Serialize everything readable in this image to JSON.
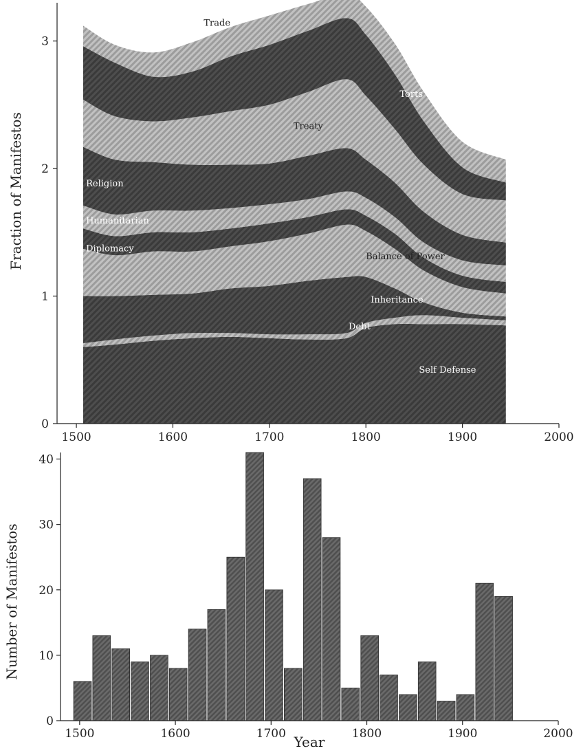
{
  "chart_data": [
    {
      "type": "area",
      "stacked": true,
      "title": "",
      "xlabel": "",
      "ylabel": "Fraction of Manifestos",
      "xlim": [
        1480,
        2000
      ],
      "ylim": [
        0,
        3.3
      ],
      "xticks": [
        "1500",
        "1600",
        "1700",
        "1800",
        "1900",
        "2000"
      ],
      "yticks": [
        "0",
        "1",
        "2",
        "3"
      ],
      "grid": false,
      "legend": "none (layers labelled inline)",
      "x": [
        1507,
        1540,
        1580,
        1620,
        1660,
        1700,
        1740,
        1780,
        1800,
        1830,
        1860,
        1900,
        1945
      ],
      "series": [
        {
          "name": "Self Defense",
          "label_pos": [
            1855,
            0.4
          ],
          "label_color": "#ffffff",
          "values": [
            0.6,
            0.62,
            0.65,
            0.67,
            0.68,
            0.67,
            0.66,
            0.67,
            0.75,
            0.78,
            0.78,
            0.78,
            0.77
          ]
        },
        {
          "name": "Debt",
          "label_pos": [
            1782,
            0.74
          ],
          "label_color": "#ffffff",
          "values": [
            0.03,
            0.04,
            0.04,
            0.04,
            0.03,
            0.03,
            0.04,
            0.04,
            0.04,
            0.05,
            0.07,
            0.05,
            0.04
          ]
        },
        {
          "name": "Inheritance",
          "label_pos": [
            1805,
            0.95
          ],
          "label_color": "#ffffff",
          "values": [
            0.37,
            0.34,
            0.32,
            0.31,
            0.35,
            0.38,
            0.42,
            0.44,
            0.36,
            0.23,
            0.1,
            0.04,
            0.03
          ]
        },
        {
          "name": "Balance of Power",
          "label_pos": [
            1800,
            1.29
          ],
          "label_color": "#222222",
          "values": [
            0.37,
            0.32,
            0.34,
            0.33,
            0.33,
            0.35,
            0.37,
            0.41,
            0.36,
            0.31,
            0.25,
            0.2,
            0.18
          ]
        },
        {
          "name": "Diplomacy",
          "label_pos": [
            1510,
            1.35
          ],
          "label_color": "#ffffff",
          "values": [
            0.16,
            0.15,
            0.15,
            0.15,
            0.14,
            0.14,
            0.13,
            0.12,
            0.12,
            0.12,
            0.1,
            0.09,
            0.09
          ]
        },
        {
          "name": "Humanitarian",
          "label_pos": [
            1510,
            1.57
          ],
          "label_color": "#ffffff",
          "values": [
            0.18,
            0.17,
            0.17,
            0.17,
            0.16,
            0.15,
            0.14,
            0.14,
            0.14,
            0.13,
            0.12,
            0.12,
            0.13
          ]
        },
        {
          "name": "Religion",
          "label_pos": [
            1510,
            1.86
          ],
          "label_color": "#ffffff",
          "values": [
            0.46,
            0.43,
            0.38,
            0.36,
            0.34,
            0.32,
            0.34,
            0.34,
            0.3,
            0.27,
            0.24,
            0.2,
            0.18
          ]
        },
        {
          "name": "Treaty",
          "label_pos": [
            1725,
            2.31
          ],
          "label_color": "#222222",
          "values": [
            0.37,
            0.34,
            0.32,
            0.37,
            0.42,
            0.46,
            0.5,
            0.54,
            0.5,
            0.42,
            0.37,
            0.32,
            0.33
          ]
        },
        {
          "name": "Torts",
          "label_pos": [
            1835,
            2.56
          ],
          "label_color": "#ffffff",
          "values": [
            0.42,
            0.42,
            0.35,
            0.36,
            0.43,
            0.47,
            0.48,
            0.48,
            0.48,
            0.43,
            0.34,
            0.21,
            0.14
          ]
        },
        {
          "name": "Trade",
          "label_pos": [
            1632,
            3.12
          ],
          "label_color": "#222222",
          "values": [
            0.16,
            0.14,
            0.19,
            0.23,
            0.23,
            0.23,
            0.21,
            0.19,
            0.22,
            0.24,
            0.23,
            0.2,
            0.18
          ]
        }
      ]
    },
    {
      "type": "bar",
      "title": "",
      "xlabel": "Year",
      "ylabel": "Number of Manifestos",
      "xlim": [
        1480,
        2000
      ],
      "ylim": [
        0,
        41
      ],
      "xticks": [
        "1500",
        "1600",
        "1700",
        "1800",
        "1900",
        "2000"
      ],
      "yticks": [
        "0",
        "10",
        "20",
        "30",
        "40"
      ],
      "grid": false,
      "bin_width": 20,
      "x": [
        1503,
        1523,
        1543,
        1563,
        1583,
        1603,
        1623,
        1643,
        1663,
        1683,
        1703,
        1723,
        1743,
        1763,
        1783,
        1803,
        1823,
        1843,
        1863,
        1883,
        1903,
        1923,
        1943
      ],
      "values": [
        6,
        13,
        11,
        9,
        10,
        8,
        14,
        17,
        25,
        41,
        20,
        8,
        37,
        28,
        5,
        13,
        7,
        4,
        9,
        3,
        4,
        21,
        19
      ]
    }
  ],
  "colors": {
    "dark_layer": "#3d3d3d",
    "light_layer": "#a6a6a6",
    "bar_fill": "#5a5a5a",
    "axis": "#222222"
  }
}
